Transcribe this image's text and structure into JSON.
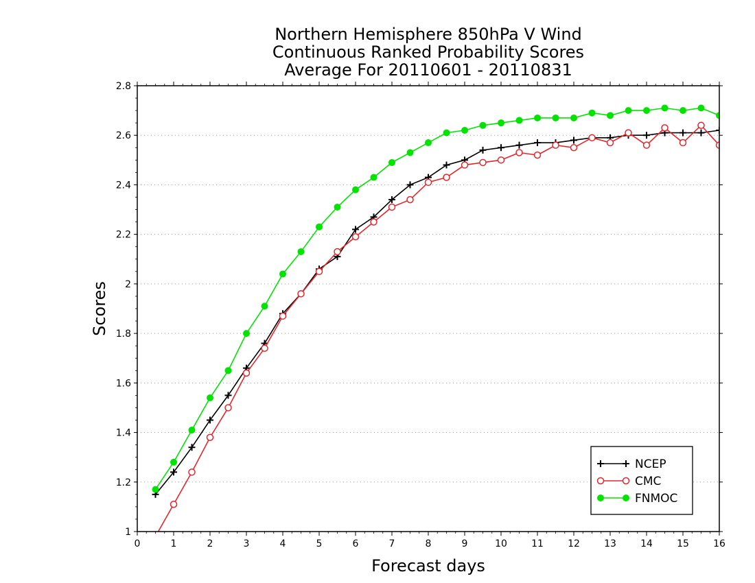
{
  "chart_data": {
    "type": "line",
    "title": [
      "Northern Hemisphere 850hPa V Wind",
      "Continuous Ranked Probability Scores",
      "Average For 20110601 - 20110831"
    ],
    "xlabel": "Forecast days",
    "ylabel": "Scores",
    "xlim": [
      0,
      16
    ],
    "ylim": [
      1,
      2.8
    ],
    "xticks": [
      "0",
      "1",
      "2",
      "3",
      "4",
      "5",
      "6",
      "7",
      "8",
      "9",
      "10",
      "11",
      "12",
      "13",
      "14",
      "15",
      "16"
    ],
    "yticks": [
      "1",
      "1.2",
      "1.4",
      "1.6",
      "1.8",
      "2",
      "2.2",
      "2.4",
      "2.6",
      "2.8"
    ],
    "grid": "horizontal dotted",
    "legend_position": "bottom-right",
    "x": [
      0.5,
      1,
      1.5,
      2,
      2.5,
      3,
      3.5,
      4,
      4.5,
      5,
      5.5,
      6,
      6.5,
      7,
      7.5,
      8,
      8.5,
      9,
      9.5,
      10,
      10.5,
      11,
      11.5,
      12,
      12.5,
      13,
      13.5,
      14,
      14.5,
      15,
      15.5,
      16
    ],
    "series": [
      {
        "name": "NCEP",
        "color": "#000000",
        "marker": "plus",
        "values": [
          1.15,
          1.24,
          1.34,
          1.45,
          1.55,
          1.66,
          1.76,
          1.88,
          1.96,
          2.06,
          2.11,
          2.22,
          2.27,
          2.34,
          2.4,
          2.43,
          2.48,
          2.5,
          2.54,
          2.55,
          2.56,
          2.57,
          2.57,
          2.58,
          2.59,
          2.59,
          2.6,
          2.6,
          2.61,
          2.61,
          2.61,
          2.62
        ]
      },
      {
        "name": "CMC",
        "color": "#e8242a",
        "marker": "open-circle",
        "values": [
          0.98,
          1.11,
          1.24,
          1.38,
          1.5,
          1.64,
          1.74,
          1.87,
          1.96,
          2.05,
          2.13,
          2.19,
          2.25,
          2.31,
          2.34,
          2.41,
          2.43,
          2.48,
          2.49,
          2.5,
          2.53,
          2.52,
          2.56,
          2.55,
          2.59,
          2.57,
          2.61,
          2.56,
          2.63,
          2.57,
          2.64,
          2.56
        ]
      },
      {
        "name": "FNMOC",
        "color": "#00e400",
        "marker": "filled-circle",
        "values": [
          1.17,
          1.28,
          1.41,
          1.54,
          1.65,
          1.8,
          1.91,
          2.04,
          2.13,
          2.23,
          2.31,
          2.38,
          2.43,
          2.49,
          2.53,
          2.57,
          2.61,
          2.62,
          2.64,
          2.65,
          2.66,
          2.67,
          2.67,
          2.67,
          2.69,
          2.68,
          2.7,
          2.7,
          2.71,
          2.7,
          2.71,
          2.68
        ]
      }
    ]
  }
}
